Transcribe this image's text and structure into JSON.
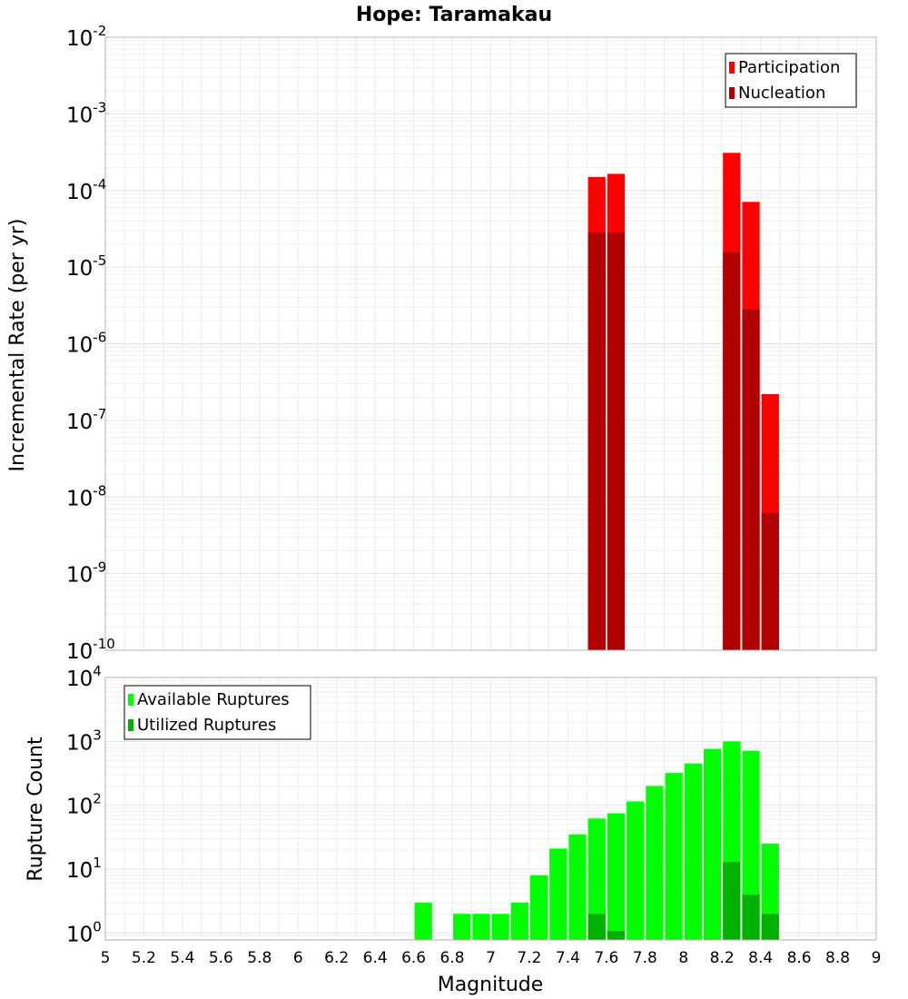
{
  "chart_data": [
    {
      "type": "bar",
      "title": "Hope: Taramakau",
      "xlabel": "",
      "ylabel": "Incremental Rate (per yr)",
      "yscale": "log",
      "ylim": [
        1e-10,
        0.01
      ],
      "xlim": [
        5,
        9
      ],
      "bar_width": 0.1,
      "grid": true,
      "legend_position": "top-right",
      "series": [
        {
          "name": "Participation",
          "color": "#ff0000",
          "points": [
            {
              "x": 7.55,
              "y": 0.00015
            },
            {
              "x": 7.65,
              "y": 0.000165
            },
            {
              "x": 8.25,
              "y": 0.00031
            },
            {
              "x": 8.35,
              "y": 7.1e-05
            },
            {
              "x": 8.45,
              "y": 2.2e-07
            }
          ]
        },
        {
          "name": "Nucleation",
          "color": "#b20000",
          "points": [
            {
              "x": 7.55,
              "y": 2.8e-05
            },
            {
              "x": 7.65,
              "y": 2.8e-05
            },
            {
              "x": 8.25,
              "y": 1.55e-05
            },
            {
              "x": 8.35,
              "y": 2.8e-06
            },
            {
              "x": 8.45,
              "y": 6.2e-09
            }
          ]
        }
      ]
    },
    {
      "type": "bar",
      "title": "",
      "xlabel": "Magnitude",
      "ylabel": "Rupture Count",
      "yscale": "log",
      "ylim": [
        0.78,
        10000.0
      ],
      "xlim": [
        5,
        9
      ],
      "xticks": [
        "5",
        "5.2",
        "5.4",
        "5.6",
        "5.8",
        "6",
        "6.2",
        "6.4",
        "6.6",
        "6.8",
        "7",
        "7.2",
        "7.4",
        "7.6",
        "7.8",
        "8",
        "8.2",
        "8.4",
        "8.6",
        "8.8",
        "9"
      ],
      "bar_width": 0.1,
      "grid": true,
      "legend_position": "top-left",
      "series": [
        {
          "name": "Available Ruptures",
          "color": "#00ff00",
          "points": [
            {
              "x": 6.65,
              "y": 3
            },
            {
              "x": 6.85,
              "y": 2
            },
            {
              "x": 6.95,
              "y": 2
            },
            {
              "x": 7.05,
              "y": 2
            },
            {
              "x": 7.15,
              "y": 3
            },
            {
              "x": 7.25,
              "y": 8
            },
            {
              "x": 7.35,
              "y": 21
            },
            {
              "x": 7.45,
              "y": 35
            },
            {
              "x": 7.55,
              "y": 62
            },
            {
              "x": 7.65,
              "y": 75
            },
            {
              "x": 7.75,
              "y": 115
            },
            {
              "x": 7.85,
              "y": 200
            },
            {
              "x": 7.95,
              "y": 320
            },
            {
              "x": 8.05,
              "y": 450
            },
            {
              "x": 8.15,
              "y": 760
            },
            {
              "x": 8.25,
              "y": 1000
            },
            {
              "x": 8.35,
              "y": 710
            },
            {
              "x": 8.45,
              "y": 25
            }
          ]
        },
        {
          "name": "Utilized Ruptures",
          "color": "#00b200",
          "points": [
            {
              "x": 7.55,
              "y": 2
            },
            {
              "x": 7.65,
              "y": 1.08
            },
            {
              "x": 8.25,
              "y": 13
            },
            {
              "x": 8.35,
              "y": 4
            },
            {
              "x": 8.45,
              "y": 2
            }
          ]
        }
      ]
    }
  ]
}
